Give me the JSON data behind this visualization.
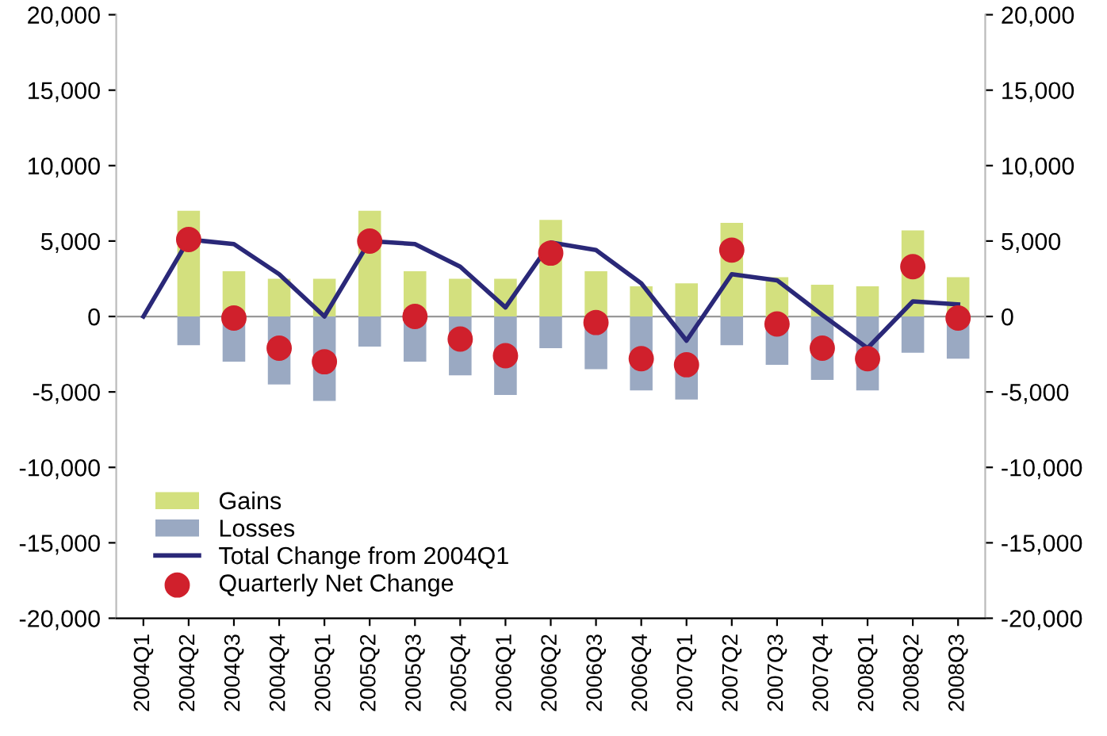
{
  "chart_data": {
    "type": "bar",
    "stacked": true,
    "categories": [
      "2004Q1",
      "2004Q2",
      "2004Q3",
      "2004Q4",
      "2005Q1",
      "2005Q2",
      "2005Q3",
      "2005Q4",
      "2006Q1",
      "2006Q2",
      "2006Q3",
      "2006Q4",
      "2007Q1",
      "2007Q2",
      "2007Q3",
      "2007Q4",
      "2008Q1",
      "2008Q2",
      "2008Q3"
    ],
    "series": [
      {
        "name": "Gains",
        "color": "#d3e07e",
        "values": [
          null,
          7000,
          3000,
          2500,
          2500,
          7000,
          3000,
          2500,
          2500,
          6400,
          3000,
          2000,
          2200,
          6200,
          2600,
          2100,
          2000,
          5700,
          2600
        ]
      },
      {
        "name": "Losses",
        "color": "#9aa9c2",
        "values": [
          null,
          -1900,
          -3000,
          -4500,
          -5600,
          -2000,
          -3000,
          -3900,
          -5200,
          -2100,
          -3500,
          -4900,
          -5500,
          -1900,
          -3200,
          -4200,
          -4900,
          -2400,
          -2800
        ]
      },
      {
        "name": "Total Change from 2004Q1",
        "type": "line",
        "color": "#2a2878",
        "values": [
          0,
          5100,
          4800,
          2800,
          0,
          5000,
          4800,
          3300,
          600,
          4900,
          4400,
          2200,
          -1600,
          2800,
          2400,
          100,
          -2100,
          1000,
          800
        ]
      },
      {
        "name": "Quarterly Net Change",
        "type": "scatter",
        "color": "#d0202c",
        "values": [
          null,
          5100,
          -100,
          -2100,
          -3000,
          5000,
          0,
          -1500,
          -2600,
          4200,
          -400,
          -2800,
          -3200,
          4400,
          -500,
          -2100,
          -2800,
          3300,
          -100
        ]
      }
    ],
    "ylim": [
      -20000,
      20000
    ],
    "yticks": [
      {
        "value": -20000,
        "label": "-20,000"
      },
      {
        "value": -15000,
        "label": "-15,000"
      },
      {
        "value": -10000,
        "label": "-10,000"
      },
      {
        "value": -5000,
        "label": "-5,000"
      },
      0,
      {
        "value": 5000,
        "label": "5,000"
      },
      {
        "value": 10000,
        "label": "10,000"
      },
      {
        "value": 15000,
        "label": "15,000"
      },
      {
        "value": 20000,
        "label": "20,000"
      }
    ],
    "y2lim": [
      -20000,
      20000
    ],
    "y2ticks": [
      {
        "value": -20000,
        "label": "-20,000"
      },
      {
        "value": -15000,
        "label": "-15,000"
      },
      {
        "value": -10000,
        "label": "-10,000"
      },
      {
        "value": -5000,
        "label": "-5,000"
      },
      0,
      {
        "value": 5000,
        "label": "5,000"
      },
      {
        "value": 10000,
        "label": "10,000"
      },
      {
        "value": 15000,
        "label": "15,000"
      },
      {
        "value": 20000,
        "label": "20,000"
      }
    ],
    "ref_lines": [
      {
        "axis": "y",
        "value": 0,
        "color": "#999999"
      }
    ],
    "legend": "bottom left"
  }
}
